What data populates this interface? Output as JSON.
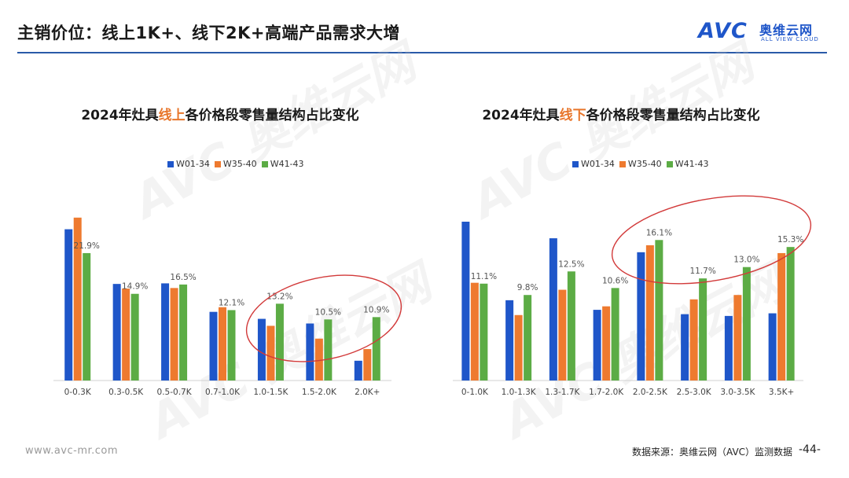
{
  "header": {
    "title": "主销价位：线上1K+、线下2K+高端产品需求大增",
    "logo_mark": "AVC",
    "logo_cn": "奥维云网",
    "logo_en": "ALL VIEW CLOUD"
  },
  "footer": {
    "url": "www.avc-mr.com",
    "source": "数据来源：奥维云网（AVC）监测数据",
    "page": "-44-"
  },
  "watermark": {
    "text": "AVC 奥维云网"
  },
  "colors": {
    "W01-34": "#1f56c9",
    "W35-40": "#ee7a2f",
    "W41-43": "#5cac45",
    "ellipse": "#d23a3a"
  },
  "chart_data": [
    {
      "type": "bar",
      "title_pre": "2024年灶具",
      "title_hl": "线上",
      "title_post": "各价格段零售量结构占比变化",
      "categories": [
        "0-0.3K",
        "0.3-0.5K",
        "0.5-0.7K",
        "0.7-1.0K",
        "1.0-1.5K",
        "1.5-2.0K",
        "2.0K+"
      ],
      "series": [
        {
          "name": "W01-34",
          "values": [
            26.0,
            16.6,
            16.7,
            11.8,
            10.6,
            9.8,
            3.4
          ]
        },
        {
          "name": "W35-40",
          "values": [
            28.0,
            15.8,
            15.9,
            12.6,
            9.4,
            7.2,
            5.4
          ]
        },
        {
          "name": "W41-43",
          "values": [
            21.9,
            14.9,
            16.5,
            12.1,
            13.2,
            10.5,
            10.9
          ]
        }
      ],
      "data_labels": [
        "21.9%",
        "14.9%",
        "16.5%",
        "12.1%",
        "13.2%",
        "10.5%",
        "10.9%"
      ],
      "ylim": [
        0,
        30
      ],
      "legend": "top-center",
      "grid": false
    },
    {
      "type": "bar",
      "title_pre": "2024年灶具",
      "title_hl": "线下",
      "title_post": "各价格段零售量结构占比变化",
      "categories": [
        "0-1.0K",
        "1.0-1.3K",
        "1.3-1.7K",
        "1.7-2.0K",
        "2.0-2.5K",
        "2.5-3.0K",
        "3.0-3.5K",
        "3.5K+"
      ],
      "series": [
        {
          "name": "W01-34",
          "values": [
            18.2,
            9.2,
            16.3,
            8.1,
            14.7,
            7.6,
            7.4,
            7.7
          ]
        },
        {
          "name": "W35-40",
          "values": [
            11.2,
            7.5,
            10.4,
            8.5,
            15.5,
            9.3,
            9.8,
            14.6
          ]
        },
        {
          "name": "W41-43",
          "values": [
            11.1,
            9.8,
            12.5,
            10.6,
            16.1,
            11.7,
            13.0,
            15.3
          ]
        }
      ],
      "data_labels": [
        "11.1%",
        "9.8%",
        "12.5%",
        "10.6%",
        "16.1%",
        "11.7%",
        "13.0%",
        "15.3%"
      ],
      "ylim": [
        0,
        20
      ],
      "legend": "top-center",
      "grid": false
    }
  ]
}
